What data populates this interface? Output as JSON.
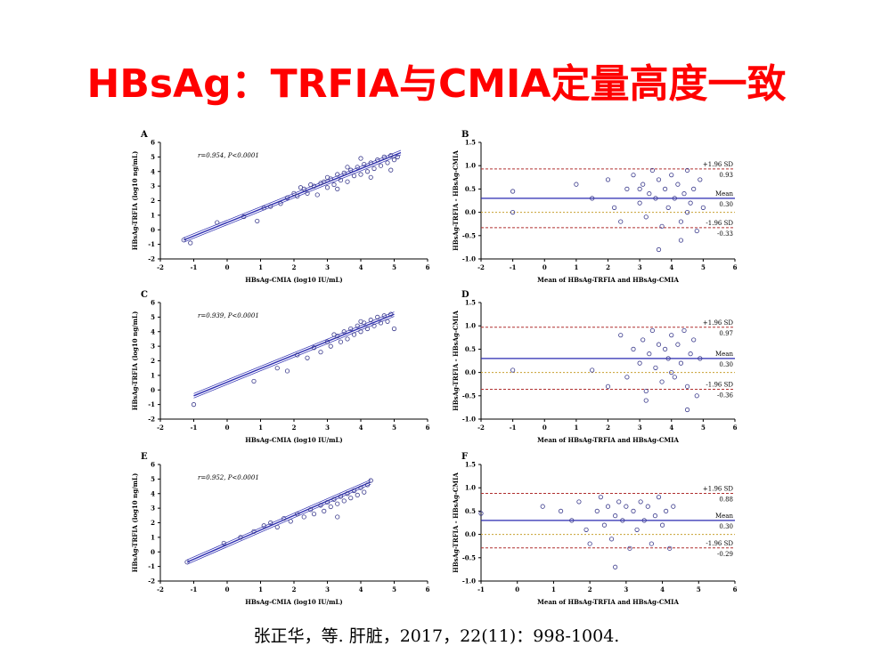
{
  "title": "HBsAg：TRFIA与CMIA定量高度一致",
  "citation": "张正华，等.  肝脏，2017，22(11)：998-1004.",
  "colors": {
    "title": "#ff0000",
    "points": "#3a3a8c",
    "regression": "#2b2bb0",
    "mean_line": "#2a2ab0",
    "sd_line": "#b03030",
    "zero_line": "#c8a030"
  },
  "chart_data": [
    {
      "panel": "A",
      "type": "scatter",
      "xlabel": "HBsAg-CMIA (log10 IU/mL)",
      "ylabel": "HBsAg-TRFIA (log10 ng/mL)",
      "annotation": "r=0.954, P<0.0001",
      "xlim": [
        -2,
        6
      ],
      "ylim": [
        -2,
        6
      ],
      "xticks": [
        "-2",
        "-1",
        "0",
        "1",
        "2",
        "3",
        "4",
        "5",
        "6"
      ],
      "yticks": [
        "6",
        "5",
        "4",
        "3",
        "2",
        "1",
        "0",
        "-1",
        "-2"
      ],
      "fit": [
        [
          -1.3,
          -0.7
        ],
        [
          5.2,
          5.3
        ]
      ],
      "points": [
        [
          -1.3,
          -0.7
        ],
        [
          -1.1,
          -0.9
        ],
        [
          -0.3,
          0.5
        ],
        [
          0.5,
          0.9
        ],
        [
          0.9,
          0.6
        ],
        [
          1.1,
          1.5
        ],
        [
          1.3,
          1.6
        ],
        [
          1.6,
          1.8
        ],
        [
          1.8,
          2.2
        ],
        [
          2.0,
          2.5
        ],
        [
          2.1,
          2.3
        ],
        [
          2.3,
          2.8
        ],
        [
          2.4,
          2.5
        ],
        [
          2.6,
          3.0
        ],
        [
          2.7,
          2.4
        ],
        [
          2.8,
          3.2
        ],
        [
          2.9,
          3.3
        ],
        [
          3.0,
          2.9
        ],
        [
          3.1,
          3.5
        ],
        [
          3.2,
          3.1
        ],
        [
          3.3,
          3.8
        ],
        [
          3.4,
          3.4
        ],
        [
          3.5,
          3.9
        ],
        [
          3.6,
          3.3
        ],
        [
          3.7,
          4.1
        ],
        [
          3.8,
          3.7
        ],
        [
          3.9,
          4.3
        ],
        [
          4.0,
          3.8
        ],
        [
          4.1,
          4.5
        ],
        [
          4.2,
          4.0
        ],
        [
          4.3,
          4.6
        ],
        [
          4.4,
          4.2
        ],
        [
          4.5,
          4.8
        ],
        [
          4.6,
          4.4
        ],
        [
          4.7,
          5.0
        ],
        [
          4.8,
          4.6
        ],
        [
          4.9,
          5.1
        ],
        [
          5.0,
          4.8
        ],
        [
          5.1,
          5.0
        ],
        [
          4.3,
          3.6
        ],
        [
          3.6,
          4.3
        ],
        [
          3.0,
          3.6
        ],
        [
          2.5,
          3.1
        ],
        [
          4.9,
          4.1
        ],
        [
          4.0,
          4.9
        ],
        [
          3.3,
          2.8
        ],
        [
          2.2,
          2.9
        ]
      ]
    },
    {
      "panel": "B",
      "type": "scatter",
      "xlabel": "Mean of HBsAg-TRFIA and HBsAg-CMIA",
      "ylabel": "HBsAg-TRFIA - HBsAg-CMIA",
      "xlim": [
        -2,
        6
      ],
      "ylim": [
        -1.0,
        1.5
      ],
      "xticks": [
        "-2",
        "-1",
        "0",
        "1",
        "2",
        "3",
        "4",
        "5",
        "6"
      ],
      "yticks": [
        "1.5",
        "1.0",
        "0.5",
        "0.0",
        "-0.5",
        "-1.0"
      ],
      "mean": 0.3,
      "upper": 0.93,
      "lower": -0.33,
      "labels": [
        "+1.96 SD",
        "0.93",
        "Mean",
        "0.30",
        "-1.96 SD",
        "-0.33"
      ],
      "points": [
        [
          -1.0,
          0.45
        ],
        [
          -1.0,
          0.0
        ],
        [
          1.0,
          0.6
        ],
        [
          1.5,
          0.3
        ],
        [
          2.0,
          0.7
        ],
        [
          2.2,
          0.1
        ],
        [
          2.4,
          -0.2
        ],
        [
          2.6,
          0.5
        ],
        [
          2.8,
          0.8
        ],
        [
          3.0,
          0.2
        ],
        [
          3.1,
          0.6
        ],
        [
          3.2,
          -0.1
        ],
        [
          3.3,
          0.4
        ],
        [
          3.4,
          0.9
        ],
        [
          3.5,
          0.3
        ],
        [
          3.6,
          0.7
        ],
        [
          3.7,
          -0.3
        ],
        [
          3.8,
          0.5
        ],
        [
          3.9,
          0.1
        ],
        [
          4.0,
          0.8
        ],
        [
          4.1,
          0.3
        ],
        [
          4.2,
          0.6
        ],
        [
          4.3,
          -0.2
        ],
        [
          4.4,
          0.4
        ],
        [
          4.5,
          0.9
        ],
        [
          4.6,
          0.2
        ],
        [
          4.7,
          0.5
        ],
        [
          4.8,
          -0.4
        ],
        [
          4.9,
          0.7
        ],
        [
          5.0,
          0.1
        ],
        [
          3.6,
          -0.8
        ],
        [
          4.3,
          -0.6
        ],
        [
          4.5,
          0.0
        ],
        [
          3.0,
          0.5
        ]
      ]
    },
    {
      "panel": "C",
      "type": "scatter",
      "xlabel": "HBsAg-CMIA (log10 IU/mL)",
      "ylabel": "HBsAg-TRFIA (log10 ng/mL)",
      "annotation": "r=0.939, P<0.0001",
      "xlim": [
        -2,
        6
      ],
      "ylim": [
        -2,
        6
      ],
      "xticks": [
        "-2",
        "-1",
        "0",
        "1",
        "2",
        "3",
        "4",
        "5",
        "6"
      ],
      "yticks": [
        "6",
        "5",
        "4",
        "3",
        "2",
        "1",
        "0",
        "-1",
        "-2"
      ],
      "fit": [
        [
          -1.0,
          -0.4
        ],
        [
          5.0,
          5.2
        ]
      ],
      "points": [
        [
          -1.0,
          -1.0
        ],
        [
          0.8,
          0.6
        ],
        [
          1.5,
          1.5
        ],
        [
          1.8,
          1.3
        ],
        [
          2.1,
          2.4
        ],
        [
          2.4,
          2.2
        ],
        [
          2.6,
          2.9
        ],
        [
          2.8,
          2.6
        ],
        [
          3.0,
          3.3
        ],
        [
          3.1,
          3.0
        ],
        [
          3.3,
          3.7
        ],
        [
          3.4,
          3.3
        ],
        [
          3.5,
          4.0
        ],
        [
          3.6,
          3.5
        ],
        [
          3.7,
          4.2
        ],
        [
          3.8,
          3.8
        ],
        [
          3.9,
          4.4
        ],
        [
          4.0,
          4.0
        ],
        [
          4.1,
          4.6
        ],
        [
          4.2,
          4.2
        ],
        [
          4.3,
          4.8
        ],
        [
          4.4,
          4.4
        ],
        [
          4.5,
          5.0
        ],
        [
          4.6,
          4.6
        ],
        [
          4.7,
          5.1
        ],
        [
          4.8,
          4.7
        ],
        [
          4.9,
          5.2
        ],
        [
          5.0,
          4.2
        ],
        [
          3.2,
          3.8
        ],
        [
          4.0,
          4.7
        ]
      ]
    },
    {
      "panel": "D",
      "type": "scatter",
      "xlabel": "Mean of HBsAg-TRFIA and HBsAg-CMIA",
      "ylabel": "HBsAg-TRFIA - HBsAg-CMIA",
      "xlim": [
        -2,
        6
      ],
      "ylim": [
        -1.0,
        1.5
      ],
      "xticks": [
        "-2",
        "-1",
        "0",
        "1",
        "2",
        "3",
        "4",
        "5",
        "6"
      ],
      "yticks": [
        "1.5",
        "1.0",
        "0.5",
        "0.0",
        "-0.5",
        "-1.0"
      ],
      "mean": 0.3,
      "upper": 0.97,
      "lower": -0.36,
      "labels": [
        "+1.96 SD",
        "0.97",
        "Mean",
        "0.30",
        "-1.96 SD",
        "-0.36"
      ],
      "points": [
        [
          -1.0,
          0.05
        ],
        [
          1.5,
          0.05
        ],
        [
          2.0,
          -0.3
        ],
        [
          2.4,
          0.8
        ],
        [
          2.6,
          -0.1
        ],
        [
          2.8,
          0.5
        ],
        [
          3.0,
          0.2
        ],
        [
          3.1,
          0.7
        ],
        [
          3.2,
          -0.4
        ],
        [
          3.3,
          0.4
        ],
        [
          3.4,
          0.9
        ],
        [
          3.5,
          0.1
        ],
        [
          3.6,
          0.6
        ],
        [
          3.7,
          -0.2
        ],
        [
          3.8,
          0.5
        ],
        [
          3.9,
          0.3
        ],
        [
          4.0,
          0.8
        ],
        [
          4.1,
          -0.1
        ],
        [
          4.2,
          0.6
        ],
        [
          4.3,
          0.2
        ],
        [
          4.4,
          0.9
        ],
        [
          4.5,
          -0.3
        ],
        [
          4.6,
          0.4
        ],
        [
          4.7,
          0.7
        ],
        [
          4.8,
          -0.5
        ],
        [
          4.9,
          0.3
        ],
        [
          3.2,
          -0.6
        ],
        [
          4.5,
          -0.8
        ],
        [
          4.0,
          0.0
        ]
      ]
    },
    {
      "panel": "E",
      "type": "scatter",
      "xlabel": "HBsAg-CMIA (log10 IU/mL)",
      "ylabel": "HBsAg-TRFIA (log10 ng/mL)",
      "annotation": "r=0.952, P<0.0001",
      "xlim": [
        -2,
        6
      ],
      "ylim": [
        -2,
        6
      ],
      "xticks": [
        "-2",
        "-1",
        "0",
        "1",
        "2",
        "3",
        "4",
        "5",
        "6"
      ],
      "yticks": [
        "6",
        "5",
        "4",
        "3",
        "2",
        "1",
        "0",
        "-1",
        "-2"
      ],
      "fit": [
        [
          -1.2,
          -0.7
        ],
        [
          4.3,
          4.8
        ]
      ],
      "points": [
        [
          -1.2,
          -0.7
        ],
        [
          -0.1,
          0.6
        ],
        [
          0.4,
          1.0
        ],
        [
          0.8,
          1.4
        ],
        [
          1.1,
          1.8
        ],
        [
          1.3,
          2.0
        ],
        [
          1.5,
          1.7
        ],
        [
          1.7,
          2.3
        ],
        [
          1.9,
          2.1
        ],
        [
          2.1,
          2.6
        ],
        [
          2.3,
          2.4
        ],
        [
          2.5,
          2.9
        ],
        [
          2.6,
          2.6
        ],
        [
          2.8,
          3.2
        ],
        [
          2.9,
          2.8
        ],
        [
          3.0,
          3.4
        ],
        [
          3.1,
          3.1
        ],
        [
          3.2,
          3.6
        ],
        [
          3.3,
          3.3
        ],
        [
          3.4,
          3.8
        ],
        [
          3.5,
          3.5
        ],
        [
          3.6,
          4.0
        ],
        [
          3.7,
          3.7
        ],
        [
          3.8,
          4.2
        ],
        [
          3.9,
          3.9
        ],
        [
          4.0,
          4.4
        ],
        [
          4.1,
          4.1
        ],
        [
          4.2,
          4.6
        ],
        [
          4.3,
          4.9
        ],
        [
          3.3,
          2.4
        ]
      ]
    },
    {
      "panel": "F",
      "type": "scatter",
      "xlabel": "Mean of HBsAg-TRFIA and HBsAg-CMIA",
      "ylabel": "HBsAg-TRFIA - HBsAg-CMIA",
      "xlim": [
        -1,
        6
      ],
      "ylim": [
        -1.0,
        1.5
      ],
      "xticks": [
        "-1",
        "0",
        "1",
        "2",
        "3",
        "4",
        "5",
        "6"
      ],
      "yticks": [
        "1.5",
        "1.0",
        "0.5",
        "0.0",
        "-0.5",
        "-1.0"
      ],
      "mean": 0.3,
      "upper": 0.88,
      "lower": -0.29,
      "labels": [
        "+1.96 SD",
        "0.88",
        "Mean",
        "0.30",
        "-1.96 SD",
        "-0.29"
      ],
      "points": [
        [
          -1.0,
          0.45
        ],
        [
          0.7,
          0.6
        ],
        [
          1.2,
          0.5
        ],
        [
          1.5,
          0.3
        ],
        [
          1.7,
          0.7
        ],
        [
          1.9,
          0.1
        ],
        [
          2.0,
          -0.2
        ],
        [
          2.2,
          0.5
        ],
        [
          2.3,
          0.8
        ],
        [
          2.4,
          0.2
        ],
        [
          2.5,
          0.6
        ],
        [
          2.6,
          -0.1
        ],
        [
          2.7,
          0.4
        ],
        [
          2.8,
          0.7
        ],
        [
          2.9,
          0.3
        ],
        [
          3.0,
          0.6
        ],
        [
          3.1,
          -0.3
        ],
        [
          3.2,
          0.5
        ],
        [
          3.3,
          0.1
        ],
        [
          3.4,
          0.7
        ],
        [
          3.5,
          0.3
        ],
        [
          3.6,
          0.6
        ],
        [
          3.7,
          -0.2
        ],
        [
          3.8,
          0.4
        ],
        [
          3.9,
          0.8
        ],
        [
          4.0,
          0.2
        ],
        [
          4.1,
          0.5
        ],
        [
          4.2,
          -0.3
        ],
        [
          4.3,
          0.6
        ],
        [
          2.7,
          -0.7
        ]
      ]
    }
  ]
}
